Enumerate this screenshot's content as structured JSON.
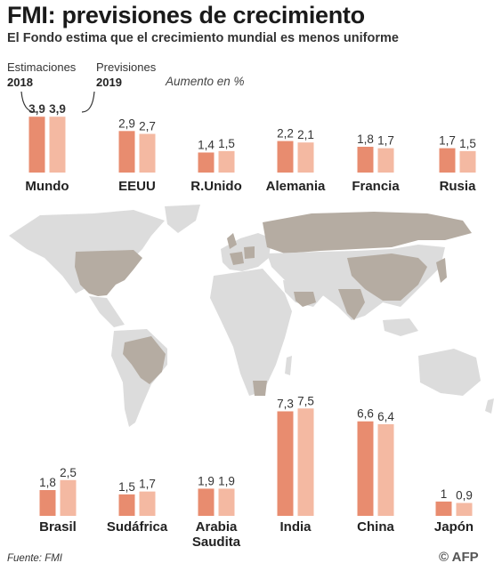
{
  "header": {
    "title": "FMI: previsiones de crecimiento",
    "subtitle": "El Fondo estima que el crecimiento mundial es menos uniforme"
  },
  "legend": {
    "est_label": "Estimaciones",
    "est_year": "2018",
    "prev_label": "Previsiones",
    "prev_year": "2019",
    "unit": "Aumento en %"
  },
  "footer": {
    "source": "Fuente: FMI",
    "credit": "© AFP"
  },
  "colors": {
    "estimate": "#e88c6f",
    "forecast": "#f4b9a2",
    "highlight_country": "#b5aca2",
    "other_land": "#dcdcdc"
  },
  "chart_data": {
    "type": "bar",
    "series": [
      {
        "name": "Estimaciones 2018",
        "color": "#e88c6f"
      },
      {
        "name": "Previsiones 2019",
        "color": "#f4b9a2"
      }
    ],
    "scale_note": "",
    "groups": [
      {
        "name": "Mundo",
        "estimate": 3.9,
        "forecast": 3.9,
        "est_label": "3,9",
        "prev_label": "3,9",
        "bold": true
      },
      {
        "name": "EEUU",
        "estimate": 2.9,
        "forecast": 2.7,
        "est_label": "2,9",
        "prev_label": "2,7"
      },
      {
        "name": "R.Unido",
        "estimate": 1.4,
        "forecast": 1.5,
        "est_label": "1,4",
        "prev_label": "1,5"
      },
      {
        "name": "Alemania",
        "estimate": 2.2,
        "forecast": 2.1,
        "est_label": "2,2",
        "prev_label": "2,1"
      },
      {
        "name": "Francia",
        "estimate": 1.8,
        "forecast": 1.7,
        "est_label": "1,8",
        "prev_label": "1,7"
      },
      {
        "name": "Rusia",
        "estimate": 1.7,
        "forecast": 1.5,
        "est_label": "1,7",
        "prev_label": "1,5"
      },
      {
        "name": "Brasil",
        "estimate": 1.8,
        "forecast": 2.5,
        "est_label": "1,8",
        "prev_label": "2,5"
      },
      {
        "name": "Sudáfrica",
        "estimate": 1.5,
        "forecast": 1.7,
        "est_label": "1,5",
        "prev_label": "1,7"
      },
      {
        "name": "Arabia Saudita",
        "estimate": 1.9,
        "forecast": 1.9,
        "est_label": "1,9",
        "prev_label": "1,9"
      },
      {
        "name": "India",
        "estimate": 7.3,
        "forecast": 7.5,
        "est_label": "7,3",
        "prev_label": "7,5"
      },
      {
        "name": "China",
        "estimate": 6.6,
        "forecast": 6.4,
        "est_label": "6,6",
        "prev_label": "6,4"
      },
      {
        "name": "Japón",
        "estimate": 1,
        "forecast": 0.9,
        "est_label": "1",
        "prev_label": "0,9"
      }
    ]
  }
}
